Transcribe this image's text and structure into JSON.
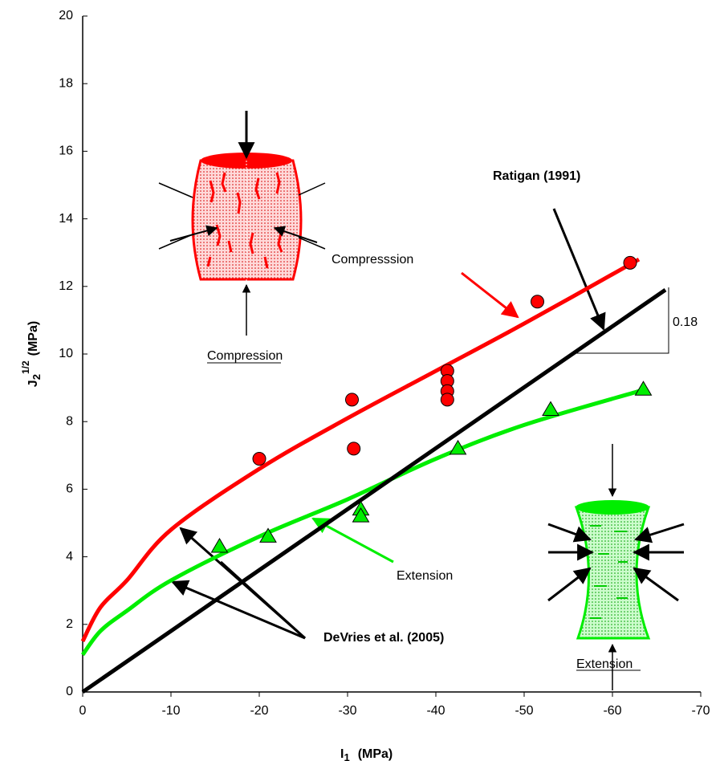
{
  "chart_data": {
    "type": "line",
    "xlabel": {
      "base": "I",
      "sub": "1",
      "unit": "(MPa)"
    },
    "ylabel": {
      "base": "J",
      "sub": "2",
      "sup": "1/2",
      "unit": "(MPa)"
    },
    "xlim": [
      0,
      -70
    ],
    "xticks": [
      0,
      -10,
      -20,
      -30,
      -40,
      -50,
      -60,
      -70
    ],
    "ylim": [
      0,
      20
    ],
    "yticks": [
      0,
      2,
      4,
      6,
      8,
      10,
      12,
      14,
      16,
      18,
      20
    ],
    "series": [
      {
        "style": "line",
        "color": "#ff0000",
        "x": [
          0,
          -2,
          -5,
          -10,
          -20,
          -30,
          -40,
          -50,
          -63
        ],
        "values": [
          1.5,
          2.5,
          3.3,
          4.8,
          6.6,
          8.1,
          9.5,
          10.9,
          12.8
        ]
      },
      {
        "style": "line",
        "color": "#00ee00",
        "x": [
          0,
          -2,
          -5,
          -10,
          -20,
          -30,
          -40,
          -50,
          -63
        ],
        "values": [
          1.1,
          1.8,
          2.4,
          3.3,
          4.6,
          5.7,
          6.9,
          7.9,
          8.9
        ]
      },
      {
        "style": "line",
        "color": "#000000",
        "x": [
          0,
          -66
        ],
        "values": [
          0,
          11.9
        ]
      },
      {
        "style": "markers",
        "marker": "circle",
        "color": "#ff0000",
        "x": [
          -20,
          -30.5,
          -30.7,
          -41.3,
          -41.3,
          -41.3,
          -41.3,
          -51.5,
          -62
        ],
        "values": [
          6.9,
          8.65,
          7.2,
          9.5,
          9.2,
          8.9,
          8.65,
          11.55,
          12.7
        ]
      },
      {
        "style": "markers",
        "marker": "triangle",
        "color": "#00ee00",
        "x": [
          -15.5,
          -21,
          -31.5,
          -31.5,
          -42.5,
          -53,
          -63.5
        ],
        "values": [
          4.3,
          4.6,
          5.4,
          5.2,
          7.2,
          8.35,
          8.95
        ]
      }
    ],
    "annotations": [
      "Ratigan (1991)",
      "Compresssion",
      "Extension",
      "DeVries et al. (2005)",
      "0.18",
      "Compression",
      "Extension"
    ]
  }
}
